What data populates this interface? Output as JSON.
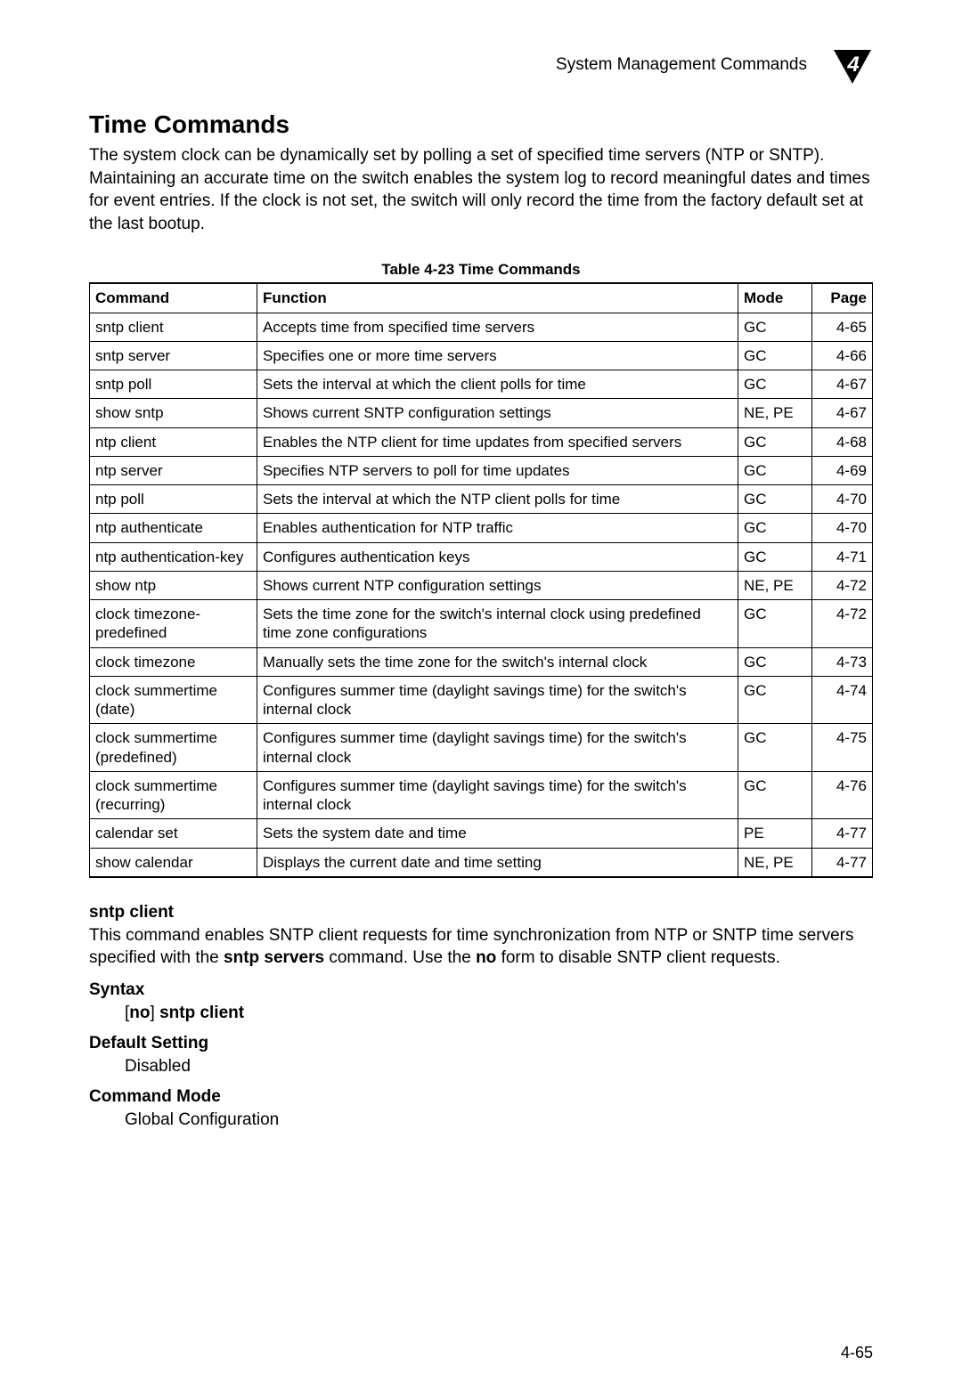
{
  "header": {
    "section_header": "System Management Commands",
    "chapter_number": "4"
  },
  "section": {
    "title": "Time Commands",
    "intro": "The system clock can be dynamically set by polling a set of specified time servers (NTP or SNTP). Maintaining an accurate time on the switch enables the system log to record meaningful dates and times for event entries. If the clock is not set, the switch will only record the time from the factory default set at the last bootup."
  },
  "table": {
    "caption": "Table 4-23  Time Commands",
    "columns": [
      "Command",
      "Function",
      "Mode",
      "Page"
    ],
    "rows": [
      [
        "sntp client",
        "Accepts time from specified time servers",
        "GC",
        "4-65"
      ],
      [
        "sntp server",
        "Specifies one or more time servers",
        "GC",
        "4-66"
      ],
      [
        "sntp poll",
        "Sets the interval at which the client polls for time",
        "GC",
        "4-67"
      ],
      [
        "show sntp",
        "Shows current SNTP configuration settings",
        "NE, PE",
        "4-67"
      ],
      [
        "ntp client",
        "Enables the NTP client for time updates from specified servers",
        "GC",
        "4-68"
      ],
      [
        "ntp server",
        "Specifies NTP servers to poll for time updates",
        "GC",
        "4-69"
      ],
      [
        "ntp poll",
        "Sets the interval at which the NTP client polls for time",
        "GC",
        "4-70"
      ],
      [
        "ntp authenticate",
        "Enables authentication for NTP traffic",
        "GC",
        "4-70"
      ],
      [
        "ntp authentication-key",
        "Configures authentication keys",
        "GC",
        "4-71"
      ],
      [
        "show ntp",
        "Shows current NTP configuration settings",
        "NE, PE",
        "4-72"
      ],
      [
        "clock timezone-predefined",
        "Sets the time zone for the switch's internal clock using predefined time zone configurations",
        "GC",
        "4-72"
      ],
      [
        "clock timezone",
        "Manually sets the time zone for the switch's internal clock",
        "GC",
        "4-73"
      ],
      [
        "clock summertime (date)",
        "Configures summer time (daylight savings time) for the switch's internal clock",
        "GC",
        "4-74"
      ],
      [
        "clock summertime (predefined)",
        "Configures summer time (daylight savings time) for the switch's internal clock",
        "GC",
        "4-75"
      ],
      [
        "clock summertime (recurring)",
        "Configures summer time (daylight savings time) for the switch's internal clock",
        "GC",
        "4-76"
      ],
      [
        "calendar set",
        "Sets the system date and time",
        "PE",
        "4-77"
      ],
      [
        "show calendar",
        "Displays the current date and time setting",
        "NE, PE",
        "4-77"
      ]
    ]
  },
  "command_detail": {
    "name": "sntp client",
    "desc_pre": "This command enables SNTP client requests for time synchronization from NTP or SNTP time servers specified with the ",
    "desc_bold1": "sntp servers",
    "desc_mid": " command. Use the ",
    "desc_bold2": "no",
    "desc_post": " form to disable SNTP client requests.",
    "syntax_label": "Syntax",
    "syntax_open": "[",
    "syntax_no": "no",
    "syntax_close": "] ",
    "syntax_cmd": "sntp client",
    "default_label": "Default Setting",
    "default_value": "Disabled",
    "mode_label": "Command Mode",
    "mode_value": "Global Configuration"
  },
  "footer": {
    "page_number": "4-65"
  },
  "style": {
    "colors": {
      "text": "#000000",
      "background": "#ffffff",
      "table_border": "#000000"
    },
    "fonts": {
      "body_family": "Arial, Helvetica, sans-serif",
      "body_size_pt": 14,
      "title_size_pt": 21,
      "table_size_pt": 13
    }
  }
}
